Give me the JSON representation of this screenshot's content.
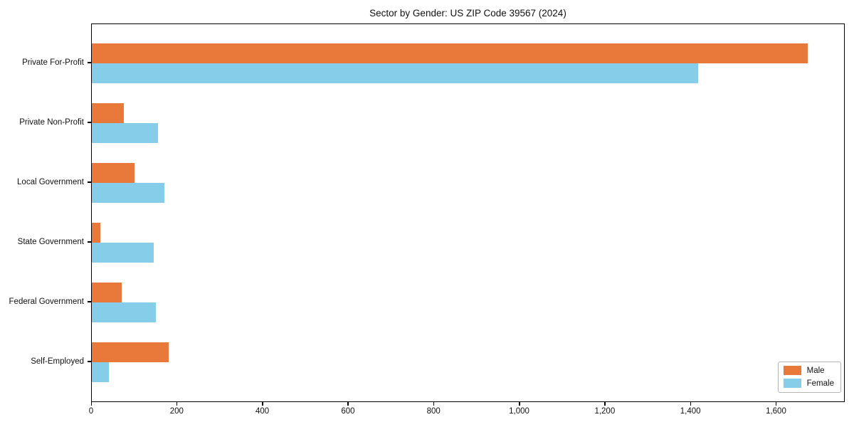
{
  "title": "Sector by Gender: US ZIP Code 39567 (2024)",
  "chart_data": {
    "type": "bar",
    "orientation": "horizontal",
    "title": "Sector by Gender: US ZIP Code 39567 (2024)",
    "categories": [
      "Private For-Profit",
      "Private Non-Profit",
      "Local Government",
      "State Government",
      "Federal Government",
      "Self-Employed"
    ],
    "series": [
      {
        "name": "Male",
        "color": "#E8793B",
        "values": [
          1670,
          75,
          100,
          20,
          70,
          180
        ]
      },
      {
        "name": "Female",
        "color": "#85CDE8",
        "values": [
          1415,
          155,
          170,
          145,
          150,
          40
        ]
      }
    ],
    "xlabel": "",
    "ylabel": "",
    "xlim": [
      0,
      1758
    ],
    "xticks": [
      0,
      200,
      400,
      600,
      800,
      1000,
      1200,
      1400,
      1600
    ],
    "xtick_labels": [
      "0",
      "200",
      "400",
      "600",
      "800",
      "1,000",
      "1,200",
      "1,400",
      "1,600"
    ],
    "grid": false,
    "legend_position": "lower right",
    "background_color": "#ffffff",
    "spine_color": "#000000"
  }
}
